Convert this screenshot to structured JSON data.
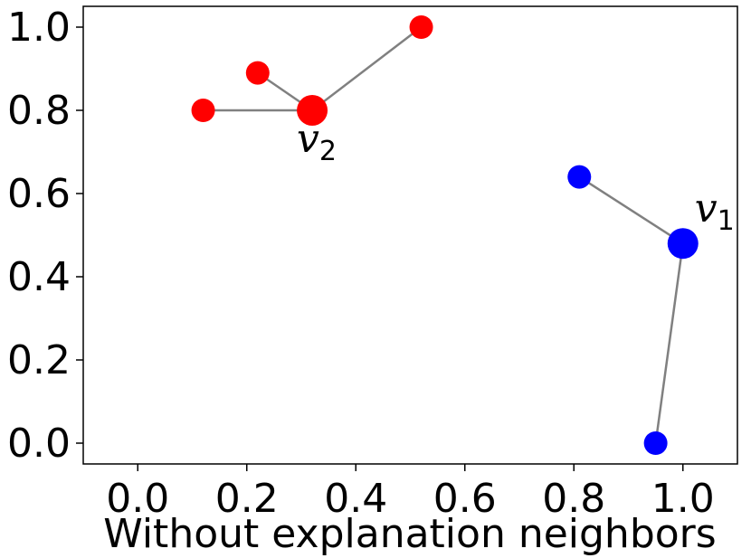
{
  "chart_data": {
    "type": "scatter",
    "title": "",
    "xlabel": "Without explanation neighbors",
    "ylabel": "",
    "xlim": [
      -0.1,
      1.1
    ],
    "ylim": [
      -0.05,
      1.05
    ],
    "xticks": [
      "0.0",
      "0.2",
      "0.4",
      "0.6",
      "0.8",
      "1.0"
    ],
    "yticks": [
      "0.0",
      "0.2",
      "0.4",
      "0.6",
      "0.8",
      "1.0"
    ],
    "grid": false,
    "edge_color": "#808080",
    "series": [
      {
        "color": "#ff0000",
        "points": [
          {
            "x": 0.32,
            "y": 0.8,
            "main": true,
            "label": "v",
            "sub": "2"
          },
          {
            "x": 0.12,
            "y": 0.8
          },
          {
            "x": 0.22,
            "y": 0.89
          },
          {
            "x": 0.52,
            "y": 1.0
          }
        ],
        "edges": [
          [
            0,
            1
          ],
          [
            0,
            2
          ],
          [
            0,
            3
          ]
        ]
      },
      {
        "color": "#0000ff",
        "points": [
          {
            "x": 1.0,
            "y": 0.48,
            "main": true,
            "label": "v",
            "sub": "1"
          },
          {
            "x": 0.81,
            "y": 0.64
          },
          {
            "x": 0.95,
            "y": 0.0
          }
        ],
        "edges": [
          [
            0,
            1
          ],
          [
            0,
            2
          ]
        ]
      }
    ]
  }
}
